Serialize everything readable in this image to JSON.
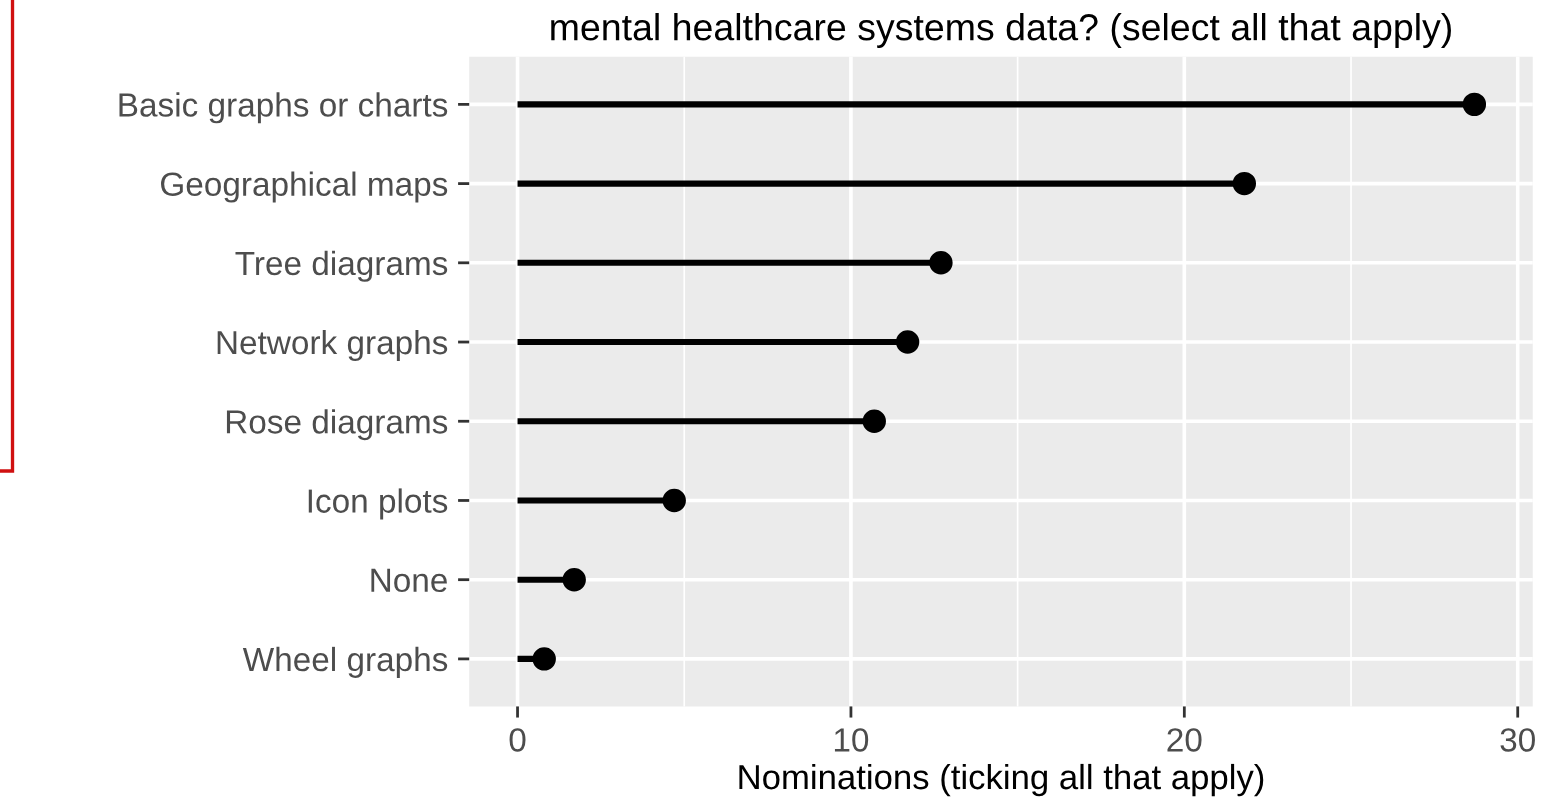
{
  "chart_data": {
    "type": "lollipop",
    "orientation": "horizontal",
    "title": "mental healthcare systems data? (select all that apply)",
    "xlabel": "Nominations (ticking all that apply)",
    "categories": [
      "Basic graphs or charts",
      "Geographical maps",
      "Tree diagrams",
      "Network graphs",
      "Rose diagrams",
      "Icon plots",
      "None",
      "Wheel graphs"
    ],
    "values": [
      28.7,
      21.8,
      12.7,
      11.7,
      10.7,
      4.7,
      1.7,
      0.8
    ],
    "color": "#000000",
    "marker": "circle",
    "xlim": [
      -1.45,
      30.45
    ],
    "xticks": [
      0,
      10,
      20,
      30
    ],
    "grid": true
  }
}
